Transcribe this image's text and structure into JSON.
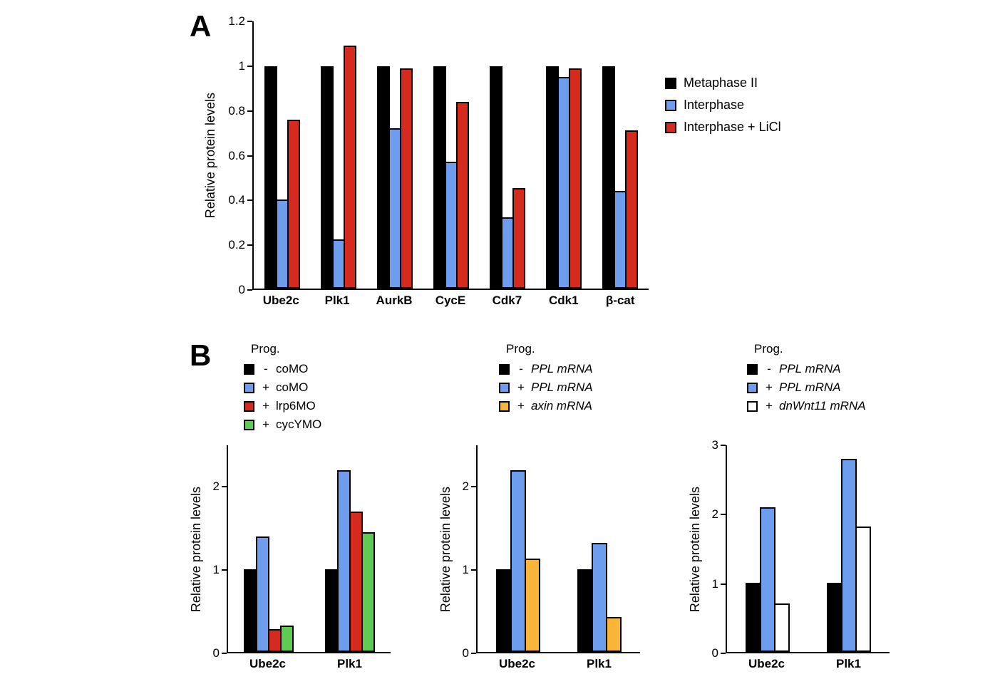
{
  "panels": {
    "a": "A",
    "b": "B"
  },
  "colors": {
    "black": "#000000",
    "blue": "#6f9ded",
    "red": "#d52b1e",
    "green": "#5ecb52",
    "yellow": "#f9b53a",
    "white": "#ffffff"
  },
  "chart_data": [
    {
      "id": "chartA",
      "type": "bar",
      "title": "",
      "xlabel": "",
      "ylabel": "Relative protein levels",
      "ylim": [
        0,
        1.2
      ],
      "ytick_values": [
        0,
        0.2,
        0.4,
        0.6,
        0.8,
        1,
        1.2
      ],
      "ytick_labels": [
        "0",
        "0.2",
        "0.4",
        "0.6",
        "0.8",
        "1",
        "1.2"
      ],
      "categories": [
        "Ube2c",
        "Plk1",
        "AurkB",
        "CycE",
        "Cdk7",
        "Cdk1",
        "β-cat"
      ],
      "series": [
        {
          "name": "Metaphase II",
          "color": "#000000",
          "values": [
            1,
            1,
            1,
            1,
            1,
            1,
            1
          ]
        },
        {
          "name": "Interphase",
          "color": "#6f9ded",
          "values": [
            0.4,
            0.22,
            0.72,
            0.57,
            0.32,
            0.95,
            0.44
          ]
        },
        {
          "name": "Interphase + LiCl",
          "color": "#d52b1e",
          "values": [
            0.76,
            1.09,
            0.99,
            0.84,
            0.45,
            0.99,
            0.71
          ]
        }
      ],
      "legend": {
        "position": "right",
        "entries": [
          {
            "label": "Metaphase II",
            "color": "#000000"
          },
          {
            "label": "Interphase",
            "color": "#6f9ded"
          },
          {
            "label": "Interphase + LiCl",
            "color": "#d52b1e"
          }
        ]
      }
    },
    {
      "id": "chartB1",
      "type": "bar",
      "title": "",
      "xlabel": "",
      "ylabel": "Relative protein levels",
      "ylim": [
        0,
        2.5
      ],
      "ytick_values": [
        0,
        1,
        2
      ],
      "ytick_labels": [
        "0",
        "1",
        "2"
      ],
      "categories": [
        "Ube2c",
        "Plk1"
      ],
      "series": [
        {
          "name": "- coMO",
          "color": "#000000",
          "values": [
            1.0,
            1.0
          ]
        },
        {
          "name": "+ coMO",
          "color": "#6f9ded",
          "values": [
            1.4,
            2.2
          ]
        },
        {
          "name": "+ lrp6MO",
          "color": "#d52b1e",
          "values": [
            0.28,
            1.7
          ]
        },
        {
          "name": "+ cycYMO",
          "color": "#5ecb52",
          "values": [
            0.32,
            1.45
          ]
        }
      ],
      "legend": {
        "position": "top",
        "header": "Prog.",
        "entries": [
          {
            "sign": "-",
            "label": "coMO",
            "color": "#000000",
            "italic": false
          },
          {
            "sign": "+",
            "label": "coMO",
            "color": "#6f9ded",
            "italic": false
          },
          {
            "sign": "+",
            "label": "lrp6MO",
            "color": "#d52b1e",
            "italic": false
          },
          {
            "sign": "+",
            "label": "cycYMO",
            "color": "#5ecb52",
            "italic": false
          }
        ]
      }
    },
    {
      "id": "chartB2",
      "type": "bar",
      "title": "",
      "xlabel": "",
      "ylabel": "Relative protein levels",
      "ylim": [
        0,
        2.5
      ],
      "ytick_values": [
        0,
        1,
        2
      ],
      "ytick_labels": [
        "0",
        "1",
        "2"
      ],
      "categories": [
        "Ube2c",
        "Plk1"
      ],
      "series": [
        {
          "name": "- PPL mRNA",
          "color": "#000000",
          "values": [
            1.0,
            1.0
          ]
        },
        {
          "name": "+ PPL mRNA",
          "color": "#6f9ded",
          "values": [
            2.2,
            1.32
          ]
        },
        {
          "name": "+ axin mRNA",
          "color": "#f9b53a",
          "values": [
            1.13,
            0.42
          ]
        }
      ],
      "legend": {
        "position": "top",
        "header": "Prog.",
        "entries": [
          {
            "sign": "-",
            "label": "PPL mRNA",
            "color": "#000000",
            "italic": true
          },
          {
            "sign": "+",
            "label": "PPL mRNA",
            "color": "#6f9ded",
            "italic": true
          },
          {
            "sign": "+",
            "label": "axin mRNA",
            "color": "#f9b53a",
            "italic": true
          }
        ]
      }
    },
    {
      "id": "chartB3",
      "type": "bar",
      "title": "",
      "xlabel": "",
      "ylabel": "Relative protein levels",
      "ylim": [
        0,
        3
      ],
      "ytick_values": [
        0,
        1,
        2,
        3
      ],
      "ytick_labels": [
        "0",
        "1",
        "2",
        "3"
      ],
      "categories": [
        "Ube2c",
        "Plk1"
      ],
      "series": [
        {
          "name": "- PPL mRNA",
          "color": "#000000",
          "values": [
            1.0,
            1.0
          ]
        },
        {
          "name": "+ PPL mRNA",
          "color": "#6f9ded",
          "values": [
            2.1,
            2.8
          ]
        },
        {
          "name": "+ dnWnt11 mRNA",
          "color": "#ffffff",
          "values": [
            0.7,
            1.82
          ]
        }
      ],
      "legend": {
        "position": "top",
        "header": "Prog.",
        "entries": [
          {
            "sign": "-",
            "label": "PPL mRNA",
            "color": "#000000",
            "italic": true
          },
          {
            "sign": "+",
            "label": "PPL mRNA",
            "color": "#6f9ded",
            "italic": true
          },
          {
            "sign": "+",
            "label": "dnWnt11 mRNA",
            "color": "#ffffff",
            "italic": true
          }
        ]
      }
    }
  ]
}
